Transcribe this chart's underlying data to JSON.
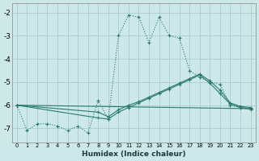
{
  "xlabel": "Humidex (Indice chaleur)",
  "bg_color": "#cce8e8",
  "grid_color": "#aacccc",
  "line_color": "#2a7a70",
  "xlim": [
    -0.5,
    23.5
  ],
  "ylim": [
    -7.6,
    -1.6
  ],
  "yticks": [
    -7,
    -6,
    -5,
    -4,
    -3,
    -2
  ],
  "xticks": [
    0,
    1,
    2,
    3,
    4,
    5,
    6,
    7,
    8,
    9,
    10,
    11,
    12,
    13,
    14,
    15,
    16,
    17,
    18,
    19,
    20,
    21,
    22,
    23
  ],
  "dotted_series": {
    "x": [
      0,
      1,
      2,
      3,
      4,
      5,
      6,
      7,
      8,
      9,
      10,
      11,
      12,
      13,
      14,
      15,
      16,
      17,
      18,
      19,
      20,
      21,
      22,
      23
    ],
    "y": [
      -6.0,
      -7.1,
      -6.8,
      -6.8,
      -6.9,
      -7.1,
      -6.9,
      -7.2,
      -5.8,
      -6.6,
      -3.0,
      -2.1,
      -2.2,
      -3.3,
      -2.2,
      -3.0,
      -3.1,
      -4.5,
      -4.8,
      -5.0,
      -5.1,
      -6.0,
      -6.1,
      -6.2
    ]
  },
  "solid_series": [
    {
      "x": [
        0,
        8,
        9,
        10,
        11,
        12,
        13,
        14,
        15,
        16,
        17,
        18,
        19,
        20,
        21,
        22,
        23
      ],
      "y": [
        -6.0,
        -6.3,
        -6.5,
        -6.2,
        -6.0,
        -5.85,
        -5.65,
        -5.45,
        -5.25,
        -5.05,
        -4.85,
        -4.65,
        -4.95,
        -5.35,
        -5.9,
        -6.05,
        -6.1
      ]
    },
    {
      "x": [
        0,
        8,
        9,
        10,
        11,
        12,
        13,
        14,
        15,
        16,
        17,
        18,
        19,
        20,
        21,
        22,
        23
      ],
      "y": [
        -6.0,
        -6.55,
        -6.6,
        -6.3,
        -6.1,
        -5.9,
        -5.7,
        -5.5,
        -5.3,
        -5.1,
        -4.9,
        -4.7,
        -5.05,
        -5.5,
        -5.95,
        -6.1,
        -6.15
      ]
    },
    {
      "x": [
        0,
        23
      ],
      "y": [
        -6.0,
        -6.15
      ]
    }
  ]
}
